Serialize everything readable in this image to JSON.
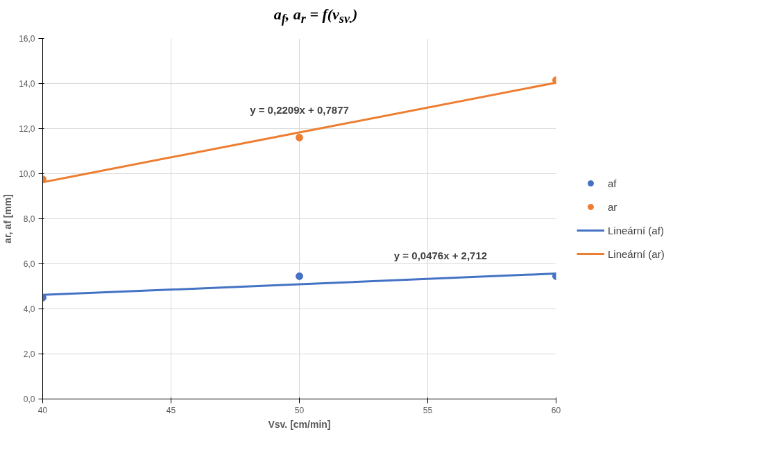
{
  "chart_data": {
    "type": "scatter",
    "title": "a$_{f}$, a$_{r}$ = f(v$_{sv.}$)",
    "xlabel": "Vsv. [cm/min]",
    "ylabel": "ar, af [mm]",
    "x": [
      40,
      50,
      60
    ],
    "series": [
      {
        "name": "af",
        "color": "#4472c4",
        "values": [
          4.5,
          5.45,
          5.45
        ],
        "marker": "circle"
      },
      {
        "name": "ar",
        "color": "#ed7d31",
        "values": [
          9.75,
          11.6,
          14.15
        ],
        "marker": "circle"
      },
      {
        "name": "Lineární (af)",
        "type": "line",
        "color": "#4472c4",
        "values": [
          4.62,
          5.09,
          5.57
        ]
      },
      {
        "name": "Lineární (ar)",
        "type": "line",
        "color": "#ed7d31",
        "values": [
          9.62,
          11.83,
          14.04
        ]
      }
    ],
    "annotations": [
      "y = 0,0476x + 2,712",
      "y = 0,2209x + 0,7877"
    ],
    "xlim": [
      40,
      60
    ],
    "xticks": [
      40,
      45,
      50,
      55,
      60
    ],
    "ylim": [
      0,
      16
    ],
    "yticks": [
      {
        "value": 0,
        "label": "0,0"
      },
      {
        "value": 2,
        "label": "2,0"
      },
      {
        "value": 4,
        "label": "4,0"
      },
      {
        "value": 6,
        "label": "6,0"
      },
      {
        "value": 8,
        "label": "8,0"
      },
      {
        "value": 10,
        "label": "10,0"
      },
      {
        "value": 12,
        "label": "12,0"
      },
      {
        "value": 14,
        "label": "14,0"
      },
      {
        "value": 16,
        "label": "16,0"
      }
    ],
    "grid": true,
    "legend": "right",
    "line_style": "solid"
  }
}
